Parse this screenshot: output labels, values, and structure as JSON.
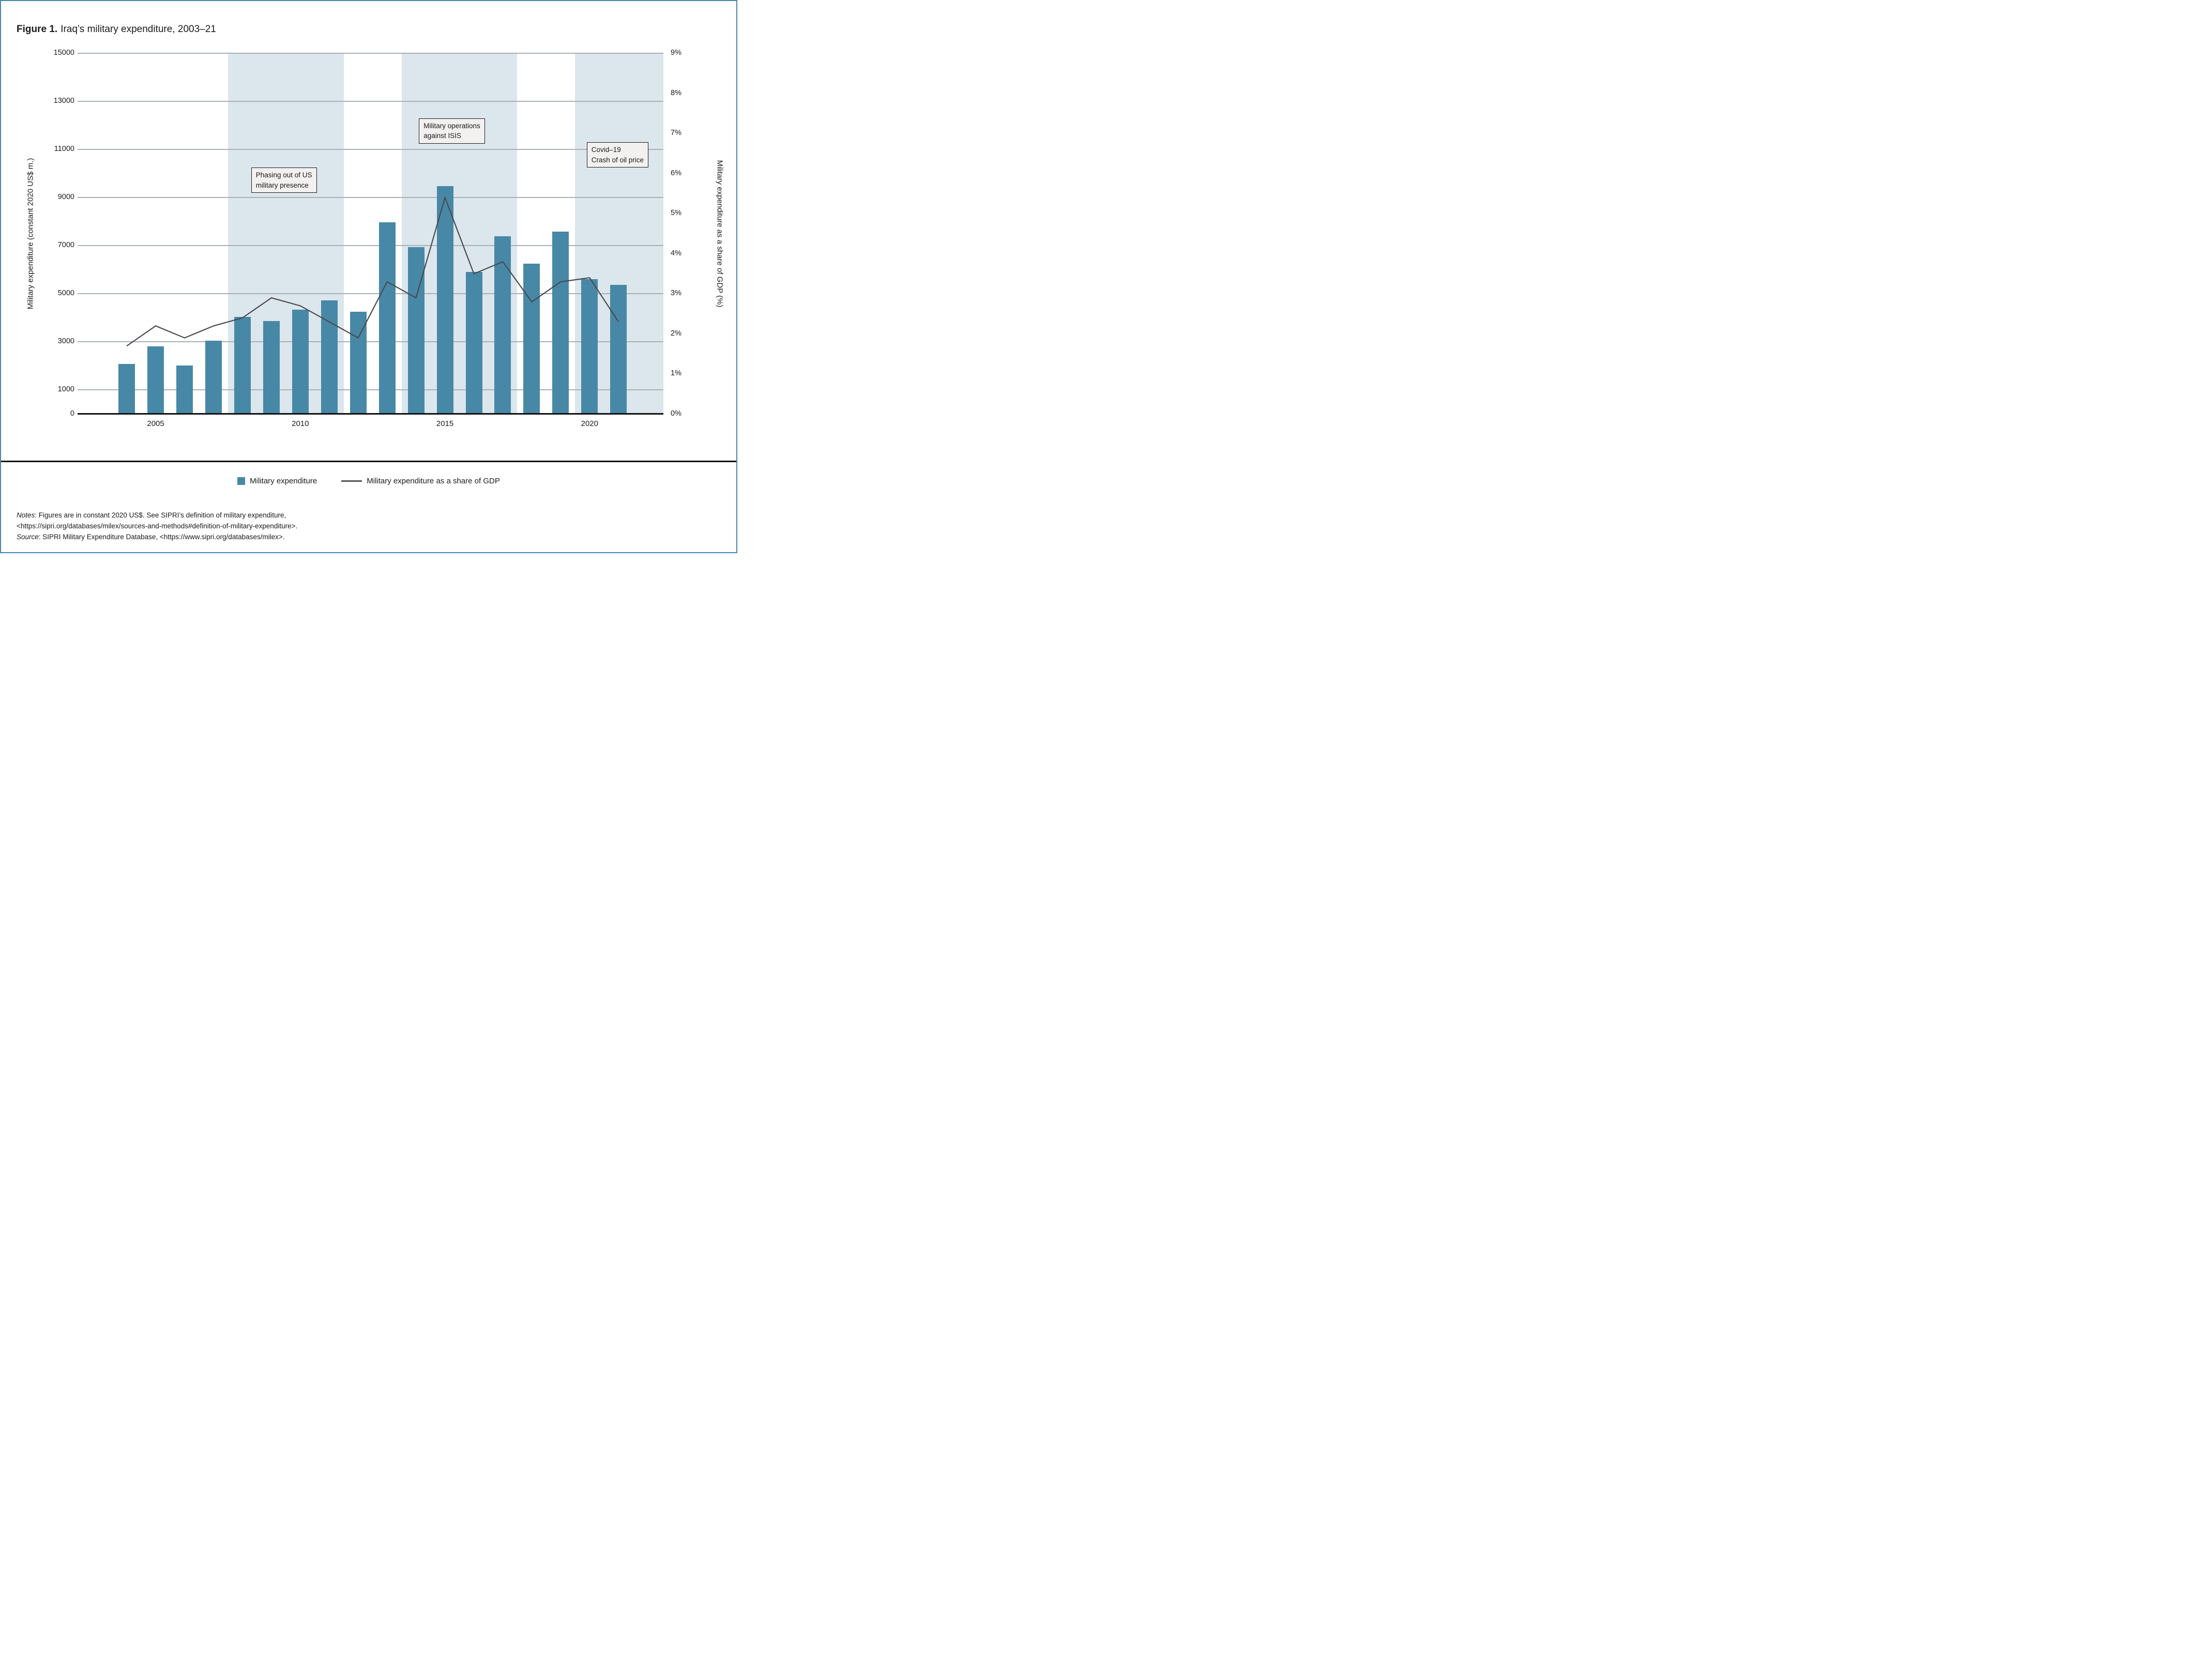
{
  "figure": {
    "label": "Figure 1.",
    "title": "Iraq’s military expenditure, 2003–21"
  },
  "chart_data": {
    "type": "bar+line combo",
    "x": [
      2004,
      2005,
      2006,
      2007,
      2008,
      2009,
      2010,
      2011,
      2012,
      2013,
      2014,
      2015,
      2016,
      2017,
      2018,
      2019,
      2020,
      2021
    ],
    "series": [
      {
        "name": "Military expenditure",
        "type": "bar",
        "axis": "left",
        "unit": "constant 2020 US$ m.",
        "values": [
          2090,
          2820,
          2030,
          3050,
          4050,
          3870,
          4340,
          4720,
          4250,
          7980,
          6950,
          9480,
          5910,
          7400,
          6250,
          7590,
          5600,
          5380
        ]
      },
      {
        "name": "Military expenditure as a share of GDP",
        "type": "line",
        "axis": "right",
        "unit": "%",
        "values": [
          1.7,
          2.2,
          1.9,
          2.2,
          2.4,
          2.9,
          2.7,
          2.3,
          1.9,
          3.3,
          2.9,
          5.4,
          3.5,
          3.8,
          2.8,
          3.3,
          3.4,
          2.3
        ]
      }
    ],
    "left_axis": {
      "label": "Military expenditure (constant 2020 US$ m.)",
      "ticks": [
        0,
        1000,
        3000,
        5000,
        7000,
        9000,
        11000,
        13000,
        15000
      ],
      "grid_values": [
        1000,
        3000,
        5000,
        7000,
        9000,
        11000,
        13000,
        15000
      ],
      "max": 15000
    },
    "right_axis": {
      "label": "Military expenditure as a share of GDP (%)",
      "ticks": [
        0,
        1,
        2,
        3,
        4,
        5,
        6,
        7,
        8,
        9
      ],
      "max": 9
    },
    "x_axis": {
      "ticks": [
        2005,
        2010,
        2015,
        2020
      ],
      "domain": [
        2002.3,
        2022.55
      ]
    },
    "bands": [
      {
        "from": 2007.5,
        "to": 2011.5
      },
      {
        "from": 2013.5,
        "to": 2017.5
      },
      {
        "from": 2019.5,
        "to": 2022.55
      }
    ],
    "annotations": [
      {
        "x": 2008.3,
        "y": 10250,
        "lines": [
          "Phasing out of US",
          "military presence"
        ]
      },
      {
        "x": 2014.1,
        "y": 12300,
        "lines": [
          "Military operations",
          "against ISIS"
        ]
      },
      {
        "x": 2019.9,
        "y": 11300,
        "lines": [
          "Covid–19",
          "Crash of oil price"
        ]
      }
    ],
    "grid": true,
    "legend_position": "bottom"
  },
  "legend": {
    "items": [
      {
        "marker": "bar-swatch",
        "label": "Military expenditure"
      },
      {
        "marker": "line",
        "label": "Military expenditure as a share of GDP"
      }
    ]
  },
  "notes": {
    "notes_word": "Notes",
    "line1": ": Figures are in constant 2020 US$. See SIPRI’s definition of military expenditure,",
    "line2": "<https://sipri.org/databases/milex/sources-and-methods#definition-of-military-expenditure>.",
    "source_word": "Source",
    "line3": ": SIPRI Military Expenditure Database, <https://www.sipri.org/databases/milex>."
  },
  "colors": {
    "bar": "#4788a7",
    "band": "#dce6ed",
    "gridline": "#a9b0b6",
    "gdp_line": "#4a4a4a",
    "frame": "#4788a7",
    "annotation_bg": "#f2f1ef",
    "text": "#1a1a1a"
  }
}
